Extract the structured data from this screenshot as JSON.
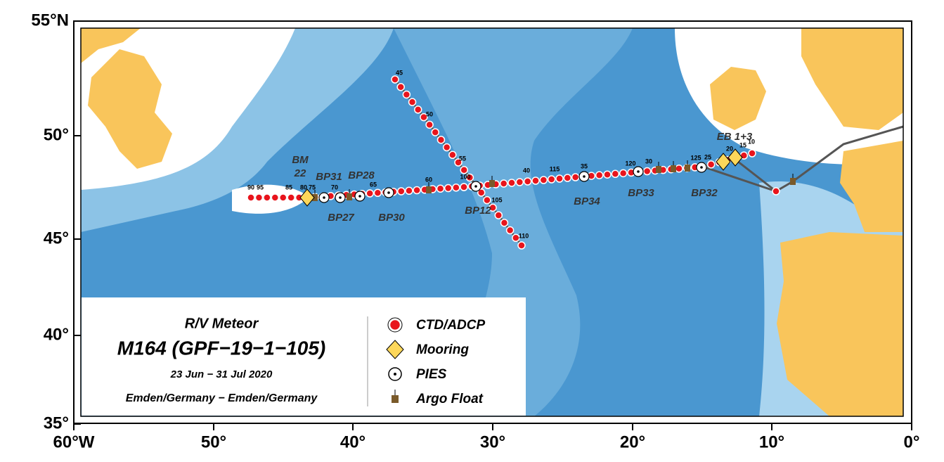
{
  "axes": {
    "lat_labels": [
      "55°N",
      "50°",
      "45°",
      "40°",
      "35°"
    ],
    "lon_labels": [
      "60°W",
      "50°",
      "40°",
      "30°",
      "20°",
      "10°",
      "0°"
    ]
  },
  "cruise": {
    "vessel": "R/V Meteor",
    "name": "M164 (GPF−19−1−105)",
    "dates": "23 Jun − 31 Jul 2020",
    "route": "Emden/Germany − Emden/Germany"
  },
  "legend": [
    "CTD/ADCP",
    "Mooring",
    "PIES",
    "Argo Float"
  ],
  "sites": [
    [
      "BM",
      "22"
    ],
    [
      "BP31"
    ],
    [
      "BP28"
    ],
    [
      "BP27"
    ],
    [
      "BP30"
    ],
    [
      "BP12"
    ],
    [
      "BP34"
    ],
    [
      "BP33"
    ],
    [
      "BP32"
    ],
    [
      "EB 1+3"
    ]
  ],
  "stations": [
    "90",
    "95",
    "85",
    "80",
    "75",
    "70",
    "65",
    "60",
    "100",
    "40",
    "115",
    "35",
    "120",
    "30",
    "125",
    "25",
    "20",
    "15",
    "10",
    "45",
    "50",
    "55",
    "105",
    "110"
  ]
}
